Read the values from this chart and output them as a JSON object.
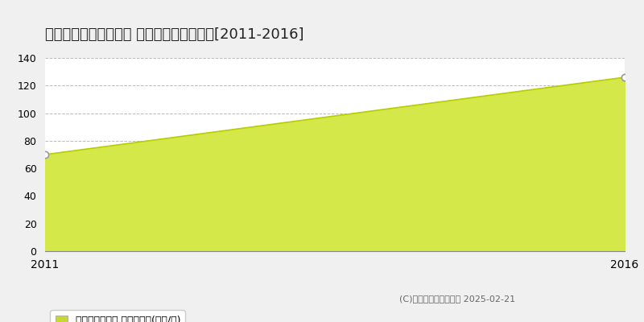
{
  "title": "名古屋市南区呼続元町 マンション価格推移[2011-2016]",
  "years": [
    2011,
    2016
  ],
  "values": [
    70,
    126
  ],
  "xlim": [
    2011,
    2016
  ],
  "ylim": [
    0,
    140
  ],
  "yticks": [
    0,
    20,
    40,
    60,
    80,
    100,
    120,
    140
  ],
  "line_color": "#b8cc00",
  "fill_color": "#d4e84a",
  "fill_alpha": 1.0,
  "marker_color": "#ffffff",
  "marker_edge_color": "#999999",
  "background_color": "#f0f0f0",
  "plot_bg_color": "#ffffff",
  "grid_color": "#aaaaaa",
  "title_fontsize": 13,
  "legend_label": "マンション価格 平均坤単価(万円/坤)",
  "copyright_text": "(C)土地価格ドットコム 2025-02-21",
  "legend_square_color": "#c8d832",
  "legend_fontsize": 9,
  "copyright_fontsize": 8
}
